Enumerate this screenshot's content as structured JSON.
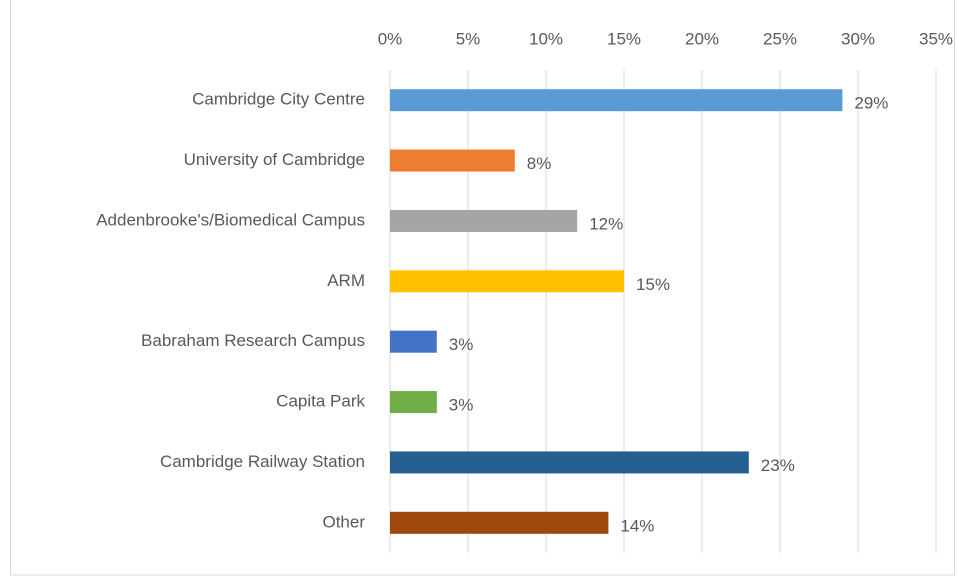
{
  "chart_data": {
    "type": "bar",
    "orientation": "horizontal",
    "categories": [
      "Cambridge City Centre",
      "University of Cambridge",
      "Addenbrooke's/Biomedical Campus",
      "ARM",
      "Babraham Research Campus",
      "Capita Park",
      "Cambridge Railway Station",
      "Other"
    ],
    "values": [
      29,
      8,
      12,
      15,
      3,
      3,
      23,
      14
    ],
    "value_labels": [
      "29%",
      "8%",
      "12%",
      "15%",
      "3%",
      "3%",
      "23%",
      "14%"
    ],
    "colors": [
      "#5b9bd5",
      "#ed7d31",
      "#a5a5a5",
      "#ffc000",
      "#4472c4",
      "#70ad47",
      "#255e91",
      "#9e480e"
    ],
    "xlim": [
      0,
      35
    ],
    "xticks": [
      {
        "value": 0,
        "label": "0%"
      },
      {
        "value": 5,
        "label": "5%"
      },
      {
        "value": 10,
        "label": "10%"
      },
      {
        "value": 15,
        "label": "15%"
      },
      {
        "value": 20,
        "label": "20%"
      },
      {
        "value": 25,
        "label": "25%"
      },
      {
        "value": 30,
        "label": "30%"
      },
      {
        "value": 35,
        "label": "35%"
      }
    ],
    "grid": true
  }
}
